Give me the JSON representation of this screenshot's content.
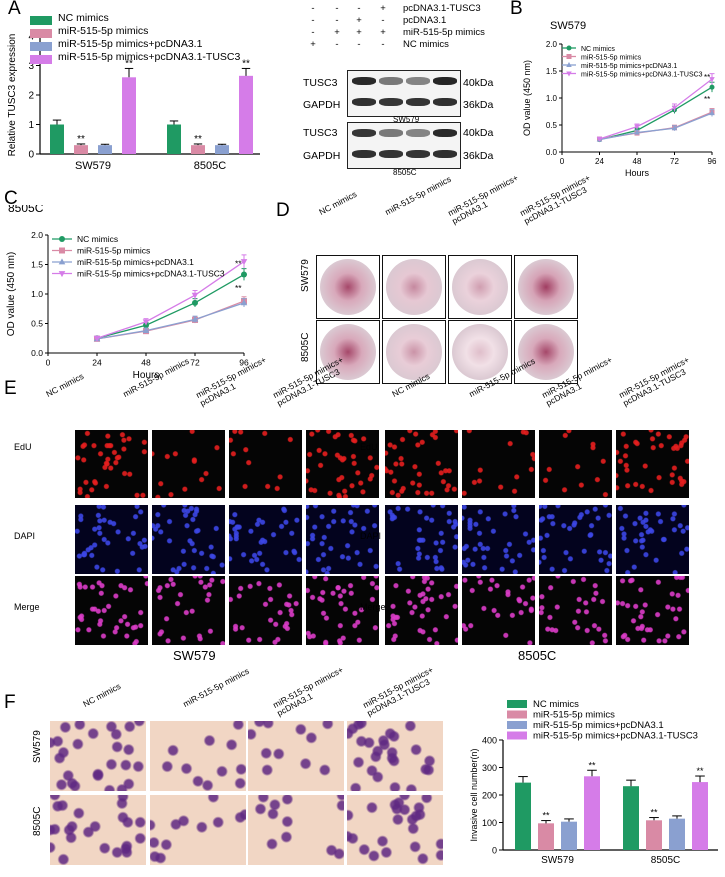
{
  "panels": {
    "A": "A",
    "B": "B",
    "C": "C",
    "D": "D",
    "E": "E",
    "F": "F"
  },
  "legend_A": [
    "NC mimics",
    "miR-515-5p mimics",
    "miR-515-5p mimics+pcDNA3.1",
    "miR-515-5p mimics+pcDNA3.1-TUSC3"
  ],
  "legend_colors": [
    "#1f9a63",
    "#d98aa5",
    "#8aa0d0",
    "#d57ce8"
  ],
  "wb": {
    "header": [
      "pcDNA3.1-TUSC3",
      "pcDNA3.1",
      "miR-515-5p mimics",
      "NC mimics"
    ],
    "matrix": [
      [
        "-",
        "-",
        "-",
        "+"
      ],
      [
        "-",
        "-",
        "+",
        "-"
      ],
      [
        "-",
        "+",
        "+",
        "+"
      ],
      [
        "+",
        "-",
        "-",
        "-"
      ]
    ],
    "block1": {
      "rows": [
        "TUSC3",
        "GAPDH"
      ],
      "kda": [
        "40kDa",
        "36kDa"
      ],
      "cell": "SW579"
    },
    "block2": {
      "rows": [
        "TUSC3",
        "GAPDH"
      ],
      "kda": [
        "40kDa",
        "36kDa"
      ],
      "cell": "8505C"
    }
  },
  "D": {
    "cols": [
      "NC mimics",
      "miR-515-5p mimics",
      "miR-515-5p mimics+\npcDNA3.1",
      "miR-515-5p mimics+\npcDNA3.1-TUSC3"
    ],
    "rows": [
      "SW579",
      "8505C"
    ]
  },
  "E": {
    "cols": [
      "NC mimics",
      "miR-515-5p mimics",
      "miR-515-5p mimics+\npcDNA3.1",
      "miR-515-5p mimics+\npcDNA3.1-TUSC3"
    ],
    "rows": [
      "EdU",
      "DAPI",
      "Merge"
    ],
    "cells": [
      "SW579",
      "8505C"
    ]
  },
  "F": {
    "cols": [
      "NC mimics",
      "miR-515-5p mimics",
      "miR-515-5p mimics+\npcDNA3.1",
      "miR-515-5p mimics+\npcDNA3.1-TUSC3"
    ],
    "rows": [
      "SW579",
      "8505C"
    ]
  },
  "chart_data": [
    {
      "id": "A",
      "type": "bar",
      "categories": [
        "SW579",
        "8505C"
      ],
      "ylabel": "Relative TUSC3 expression",
      "ylim": [
        0,
        4
      ],
      "yticks": [
        0,
        1,
        2,
        3,
        4
      ],
      "series": [
        {
          "name": "NC mimics",
          "values": [
            1.0,
            1.0
          ],
          "err": [
            0.15,
            0.12
          ]
        },
        {
          "name": "miR-515-5p mimics",
          "values": [
            0.3,
            0.3
          ],
          "err": [
            0.04,
            0.04
          ]
        },
        {
          "name": "miR-515-5p mimics+pcDNA3.1",
          "values": [
            0.3,
            0.3
          ],
          "err": [
            0.03,
            0.03
          ]
        },
        {
          "name": "miR-515-5p mimics+pcDNA3.1-TUSC3",
          "values": [
            2.6,
            2.65
          ],
          "err": [
            0.3,
            0.25
          ]
        }
      ],
      "annotations": [
        {
          "category": "SW579",
          "series": 1,
          "text": "**"
        },
        {
          "category": "SW579",
          "series": 3,
          "text": "**"
        },
        {
          "category": "8505C",
          "series": 1,
          "text": "**"
        },
        {
          "category": "8505C",
          "series": 3,
          "text": "**"
        }
      ]
    },
    {
      "id": "B",
      "type": "line",
      "title": "SW579",
      "xlabel": "Hours",
      "ylabel": "OD value (450 nm)",
      "x": [
        24,
        48,
        72,
        96
      ],
      "xlim": [
        0,
        96
      ],
      "ylim": [
        0,
        2.0
      ],
      "xticks": [
        0,
        24,
        48,
        72,
        96
      ],
      "yticks": [
        0.0,
        0.5,
        1.0,
        1.5,
        2.0
      ],
      "ytick_labels": [
        "0.0",
        "0.5",
        "1.0",
        "1.5",
        "2.0"
      ],
      "series": [
        {
          "name": "NC mimics",
          "values": [
            0.23,
            0.4,
            0.78,
            1.2
          ],
          "marker": "circle"
        },
        {
          "name": "miR-515-5p mimics",
          "values": [
            0.24,
            0.35,
            0.45,
            0.74
          ],
          "marker": "square"
        },
        {
          "name": "miR-515-5p mimics+pcDNA3.1",
          "values": [
            0.23,
            0.36,
            0.44,
            0.72
          ],
          "marker": "triangle"
        },
        {
          "name": "miR-515-5p mimics+pcDNA3.1-TUSC3",
          "values": [
            0.24,
            0.47,
            0.82,
            1.35
          ],
          "marker": "triangle-down"
        }
      ],
      "annotations": [
        "**",
        "**"
      ]
    },
    {
      "id": "C",
      "type": "line",
      "title": "8505C",
      "xlabel": "Hours",
      "ylabel": "OD value (450 nm)",
      "x": [
        24,
        48,
        72,
        96
      ],
      "xlim": [
        0,
        96
      ],
      "ylim": [
        0,
        2.0
      ],
      "xticks": [
        0,
        24,
        48,
        72,
        96
      ],
      "yticks": [
        0.0,
        0.5,
        1.0,
        1.5,
        2.0
      ],
      "ytick_labels": [
        "0.0",
        "0.5",
        "1.0",
        "1.5",
        "2.0"
      ],
      "series": [
        {
          "name": "NC mimics",
          "values": [
            0.25,
            0.47,
            0.85,
            1.33
          ],
          "marker": "circle"
        },
        {
          "name": "miR-515-5p mimics",
          "values": [
            0.24,
            0.37,
            0.56,
            0.88
          ],
          "marker": "square"
        },
        {
          "name": "miR-515-5p mimics+pcDNA3.1",
          "values": [
            0.24,
            0.38,
            0.57,
            0.85
          ],
          "marker": "triangle"
        },
        {
          "name": "miR-515-5p mimics+pcDNA3.1-TUSC3",
          "values": [
            0.25,
            0.53,
            0.98,
            1.55
          ],
          "marker": "triangle-down"
        }
      ],
      "annotations": [
        "**",
        "**"
      ]
    },
    {
      "id": "F",
      "type": "bar",
      "categories": [
        "SW579",
        "8505C"
      ],
      "ylabel": "Invasive cell number(n)",
      "ylim": [
        0,
        400
      ],
      "yticks": [
        0,
        100,
        200,
        300,
        400
      ],
      "series": [
        {
          "name": "NC mimics",
          "values": [
            245,
            232
          ],
          "err": [
            22,
            22
          ]
        },
        {
          "name": "miR-515-5p mimics",
          "values": [
            97,
            108
          ],
          "err": [
            10,
            10
          ]
        },
        {
          "name": "miR-515-5p mimics+pcDNA3.1",
          "values": [
            103,
            114
          ],
          "err": [
            10,
            10
          ]
        },
        {
          "name": "miR-515-5p mimics+pcDNA3.1-TUSC3",
          "values": [
            268,
            247
          ],
          "err": [
            22,
            22
          ]
        }
      ],
      "annotations": [
        {
          "category": "SW579",
          "series": 1,
          "text": "**"
        },
        {
          "category": "SW579",
          "series": 3,
          "text": "**"
        },
        {
          "category": "8505C",
          "series": 1,
          "text": "**"
        },
        {
          "category": "8505C",
          "series": 3,
          "text": "**"
        }
      ]
    }
  ]
}
